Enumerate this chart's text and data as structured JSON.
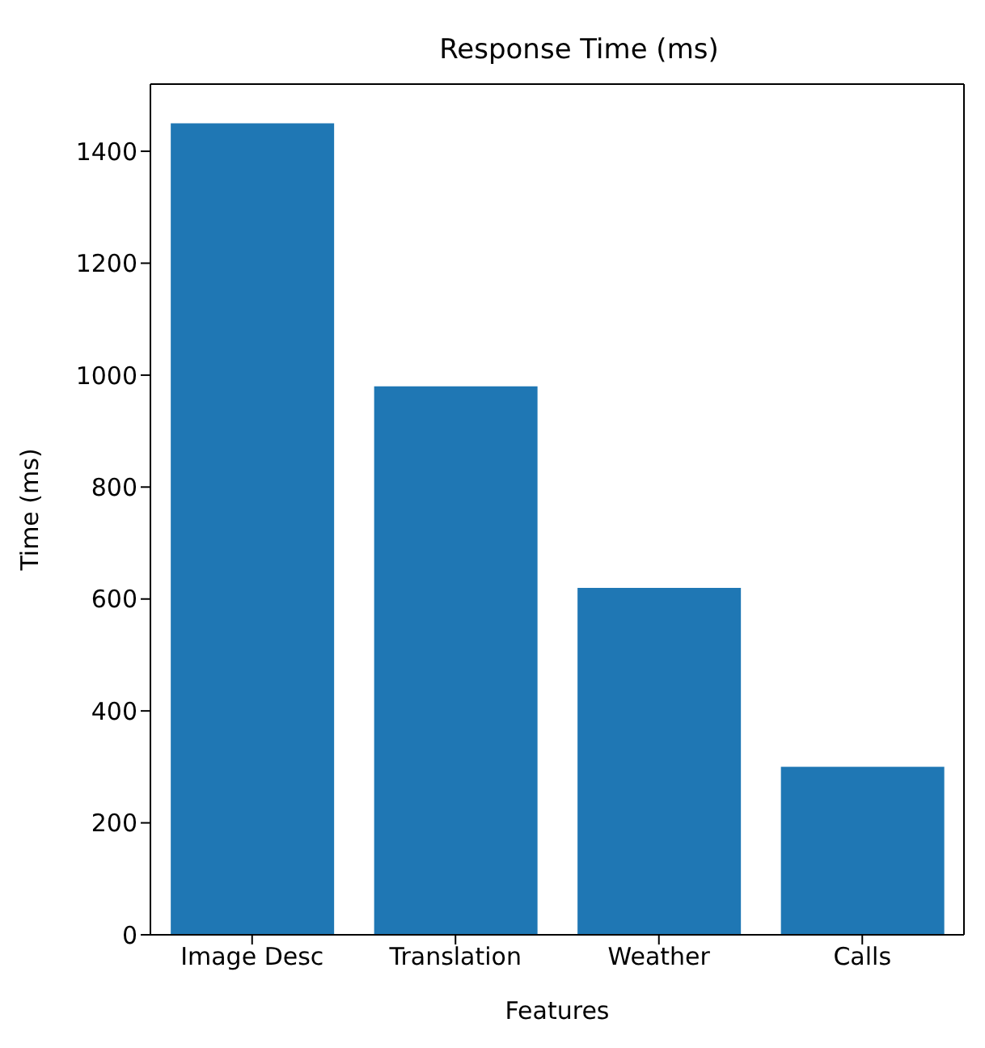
{
  "chart_data": {
    "type": "bar",
    "title": "Response Time (ms)",
    "xlabel": "Features",
    "ylabel": "Time (ms)",
    "categories": [
      "Image Desc",
      "Translation",
      "Weather",
      "Calls"
    ],
    "values": [
      1450,
      980,
      620,
      300
    ],
    "color": "#1f77b4",
    "ylim": [
      0,
      1520
    ],
    "yticks": [
      0,
      200,
      400,
      600,
      800,
      1000,
      1200,
      1400
    ]
  }
}
